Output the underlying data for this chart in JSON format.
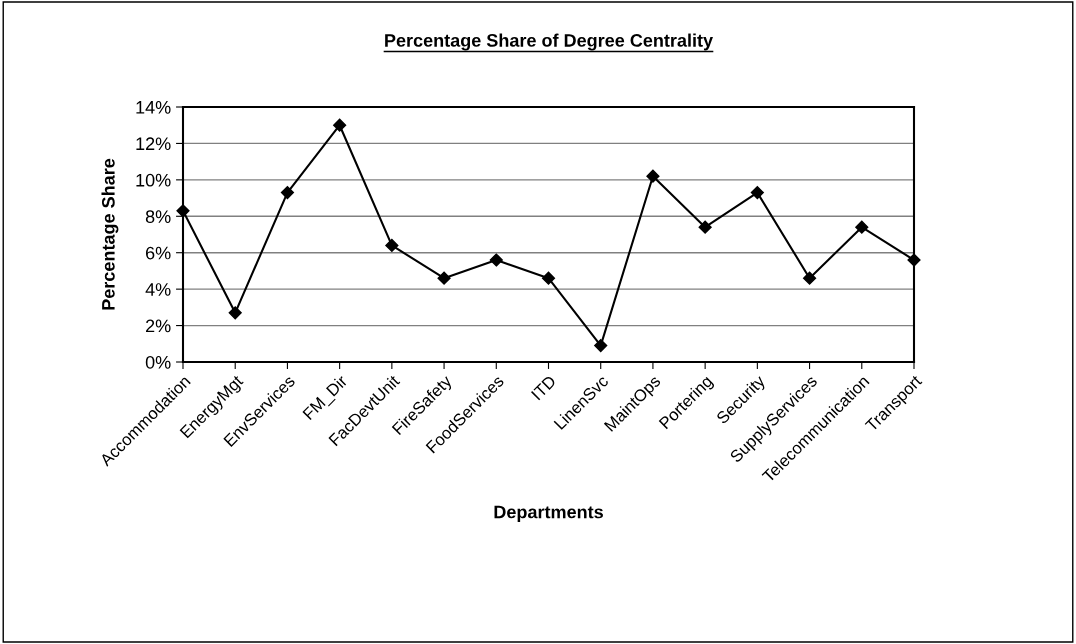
{
  "chart_data": {
    "type": "line",
    "title": "Percentage Share of Degree Centrality",
    "xlabel": "Departments",
    "ylabel": "Percentage Share",
    "categories": [
      "Accommodation",
      "EnergyMgt",
      "EnvServices",
      "FM_Dir",
      "FacDevtUnit",
      "FireSafety",
      "FoodServices",
      "ITD",
      "LinenSvc",
      "MaintOps",
      "Portering",
      "Security",
      "SupplyServices",
      "Telecommunication",
      "Transport"
    ],
    "series": [
      {
        "color": "#000000",
        "values": [
          8.3,
          2.7,
          9.3,
          13.0,
          6.4,
          4.6,
          5.6,
          4.6,
          0.9,
          10.2,
          7.4,
          9.3,
          4.6,
          7.4,
          5.6
        ]
      }
    ],
    "ylim": [
      0,
      14
    ],
    "yticks": [
      {
        "value": 0,
        "label": "0%"
      },
      {
        "value": 2,
        "label": "2%"
      },
      {
        "value": 4,
        "label": "4%"
      },
      {
        "value": 6,
        "label": "6%"
      },
      {
        "value": 8,
        "label": "8%"
      },
      {
        "value": 10,
        "label": "10%"
      },
      {
        "value": 12,
        "label": "12%"
      },
      {
        "value": 14,
        "label": "14%"
      }
    ],
    "grid": "y",
    "marker": "diamond",
    "line_style": "solid",
    "legend": false
  }
}
